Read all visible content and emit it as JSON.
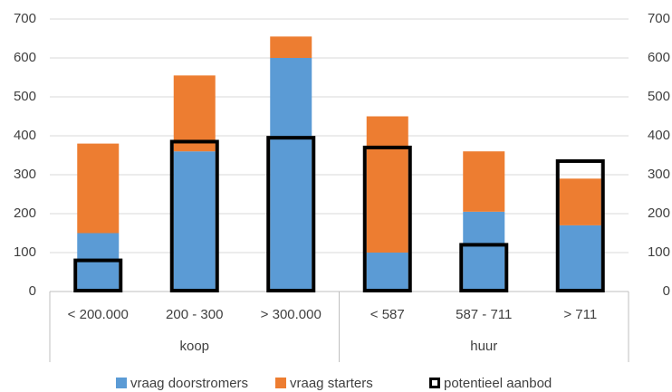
{
  "chart_data": {
    "type": "bar",
    "stacked": true,
    "groups": [
      {
        "name": "koop",
        "categories": [
          "< 200.000",
          "200 - 300",
          "> 300.000"
        ]
      },
      {
        "name": "huur",
        "categories": [
          "< 587",
          "587 - 711",
          "> 711"
        ]
      }
    ],
    "series": [
      {
        "name": "vraag doorstromers",
        "color": "#5b9bd5",
        "values": [
          150,
          360,
          600,
          100,
          205,
          170
        ]
      },
      {
        "name": "vraag starters",
        "color": "#ed7d31",
        "values": [
          230,
          195,
          55,
          350,
          155,
          120
        ]
      },
      {
        "name": "potentieel aanbod",
        "color": "#000000",
        "style": "outline-box",
        "values": [
          80,
          385,
          395,
          370,
          120,
          335
        ]
      }
    ],
    "ylim": [
      0,
      700
    ],
    "yticks": [
      0,
      100,
      200,
      300,
      400,
      500,
      600,
      700
    ],
    "y2lim": [
      0,
      700
    ],
    "y2ticks": [
      0,
      100,
      200,
      300,
      400,
      500,
      600,
      700
    ],
    "grid": true
  }
}
